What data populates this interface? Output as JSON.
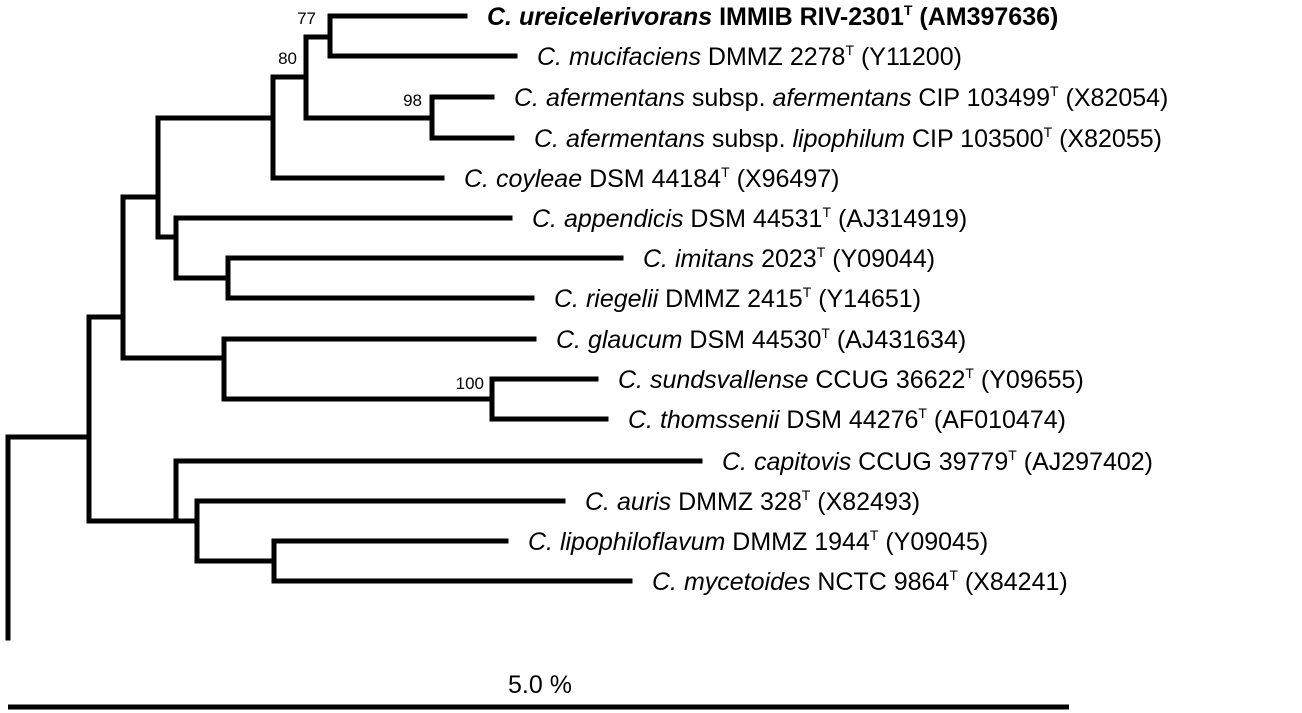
{
  "tree": {
    "leaves": [
      {
        "genus": "C.",
        "species": "ureicelerivorans",
        "subsp_word": "",
        "subsp_name": "",
        "strain": "IMMIB RIV-2301",
        "type_mark": "T",
        "accession": "(AM397636)",
        "highlight": true
      },
      {
        "genus": "C.",
        "species": "mucifaciens",
        "subsp_word": "",
        "subsp_name": "",
        "strain": "DMMZ 2278",
        "type_mark": "T",
        "accession": "(Y11200)",
        "highlight": false
      },
      {
        "genus": "C.",
        "species": "afermentans",
        "subsp_word": "subsp.",
        "subsp_name": "afermentans",
        "strain": "CIP 103499",
        "type_mark": "T",
        "accession": "(X82054)",
        "highlight": false
      },
      {
        "genus": "C.",
        "species": "afermentans",
        "subsp_word": "subsp.",
        "subsp_name": "lipophilum",
        "strain": "CIP 103500",
        "type_mark": "T",
        "accession": "(X82055)",
        "highlight": false
      },
      {
        "genus": "C.",
        "species": "coyleae",
        "subsp_word": "",
        "subsp_name": "",
        "strain": "DSM 44184",
        "type_mark": "T",
        "accession": "(X96497)",
        "highlight": false
      },
      {
        "genus": "C.",
        "species": "appendicis",
        "subsp_word": "",
        "subsp_name": "",
        "strain": "DSM 44531",
        "type_mark": "T",
        "accession": "(AJ314919)",
        "highlight": false
      },
      {
        "genus": "C.",
        "species": "imitans",
        "subsp_word": "",
        "subsp_name": "",
        "strain": "2023",
        "type_mark": "T",
        "accession": "(Y09044)",
        "highlight": false
      },
      {
        "genus": "C.",
        "species": "riegelii",
        "subsp_word": "",
        "subsp_name": "",
        "strain": "DMMZ 2415",
        "type_mark": "T",
        "accession": "(Y14651)",
        "highlight": false
      },
      {
        "genus": "C.",
        "species": "glaucum",
        "subsp_word": "",
        "subsp_name": "",
        "strain": "DSM 44530",
        "type_mark": "T",
        "accession": "(AJ431634)",
        "highlight": false
      },
      {
        "genus": "C.",
        "species": "sundsvallense",
        "subsp_word": "",
        "subsp_name": "",
        "strain": "CCUG 36622",
        "type_mark": "T",
        "accession": "(Y09655)",
        "highlight": false
      },
      {
        "genus": "C.",
        "species": "thomssenii",
        "subsp_word": "",
        "subsp_name": "",
        "strain": "DSM 44276",
        "type_mark": "T",
        "accession": "(AF010474)",
        "highlight": false
      },
      {
        "genus": "C.",
        "species": "capitovis",
        "subsp_word": "",
        "subsp_name": "",
        "strain": "CCUG 39779",
        "type_mark": "T",
        "accession": "(AJ297402)",
        "highlight": false
      },
      {
        "genus": "C.",
        "species": "auris",
        "subsp_word": "",
        "subsp_name": "",
        "strain": "DMMZ 328",
        "type_mark": "T",
        "accession": "(X82493)",
        "highlight": false
      },
      {
        "genus": "C.",
        "species": "lipophiloflavum",
        "subsp_word": "",
        "subsp_name": "",
        "strain": "DMMZ 1944",
        "type_mark": "T",
        "accession": "(Y09045)",
        "highlight": false
      },
      {
        "genus": "C.",
        "species": "mycetoides",
        "subsp_word": "",
        "subsp_name": "",
        "strain": "NCTC 9864",
        "type_mark": "T",
        "accession": "(X84241)",
        "highlight": false
      }
    ],
    "bootstrap_values": [
      "77",
      "80",
      "98",
      "100"
    ],
    "scale_bar": {
      "label": "5.0 %"
    }
  }
}
